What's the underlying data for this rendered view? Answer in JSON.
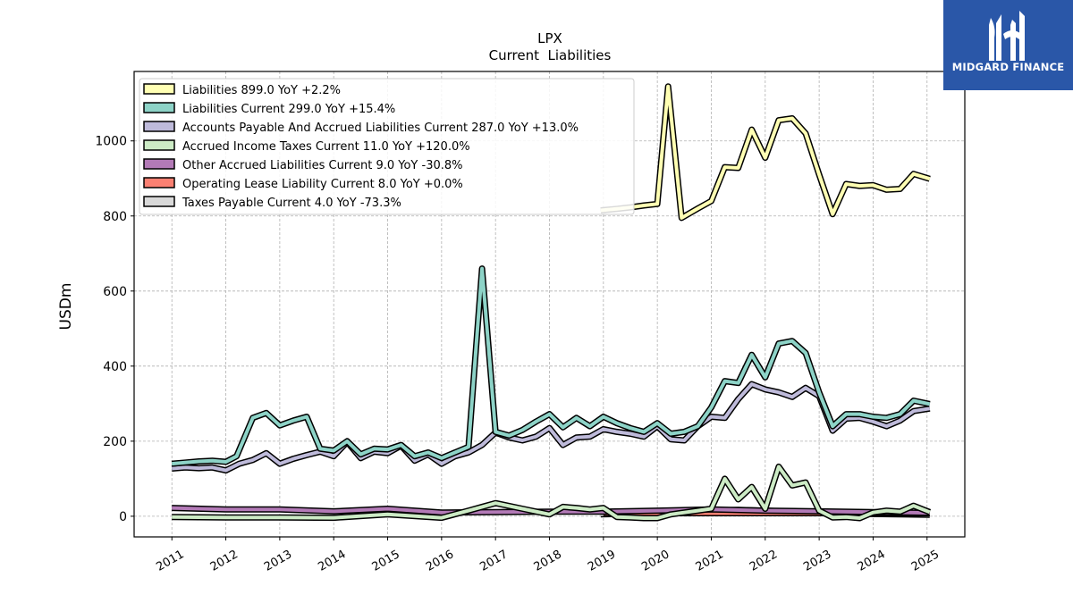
{
  "header": {
    "ticker": "LPX",
    "subtitle": "Current  Liabilities"
  },
  "brand": {
    "name": "MIDGARD FINANCE",
    "color": "#2a57a8"
  },
  "chart_data": {
    "type": "line",
    "ylabel": "USDm",
    "xlabel": "",
    "ylim": [
      -55,
      1185
    ],
    "xlim": [
      2010.3,
      2025.7
    ],
    "yticks": [
      0,
      200,
      400,
      600,
      800,
      1000
    ],
    "xticks": [
      "2011",
      "2012",
      "2013",
      "2014",
      "2015",
      "2016",
      "2017",
      "2018",
      "2019",
      "2020",
      "2021",
      "2022",
      "2023",
      "2024",
      "2025"
    ],
    "grid": true,
    "legend_position": "top-left",
    "series": [
      {
        "name": "Liabilities",
        "legend_value": "899.0",
        "legend_yoy": "YoY +2.2%",
        "color": "#ffffb3",
        "points": [
          [
            2018.95,
            815
          ],
          [
            2019.25,
            819
          ],
          [
            2019.5,
            823
          ],
          [
            2019.75,
            828
          ],
          [
            2020.0,
            832
          ],
          [
            2020.2,
            1145
          ],
          [
            2020.45,
            795
          ],
          [
            2020.75,
            820
          ],
          [
            2021.0,
            840
          ],
          [
            2021.25,
            930
          ],
          [
            2021.5,
            928
          ],
          [
            2021.75,
            1030
          ],
          [
            2022.0,
            955
          ],
          [
            2022.25,
            1055
          ],
          [
            2022.5,
            1060
          ],
          [
            2022.75,
            1020
          ],
          [
            2023.0,
            910
          ],
          [
            2023.25,
            805
          ],
          [
            2023.5,
            885
          ],
          [
            2023.75,
            880
          ],
          [
            2024.0,
            882
          ],
          [
            2024.25,
            870
          ],
          [
            2024.5,
            872
          ],
          [
            2024.75,
            912
          ],
          [
            2025.05,
            899
          ]
        ]
      },
      {
        "name": "Liabilities Current",
        "legend_value": "299.0",
        "legend_yoy": "YoY +15.4%",
        "color": "#8dd3c7",
        "points": [
          [
            2011.0,
            140
          ],
          [
            2011.25,
            143
          ],
          [
            2011.5,
            146
          ],
          [
            2011.75,
            148
          ],
          [
            2012.0,
            145
          ],
          [
            2012.2,
            160
          ],
          [
            2012.5,
            262
          ],
          [
            2012.75,
            275
          ],
          [
            2013.0,
            242
          ],
          [
            2013.25,
            255
          ],
          [
            2013.5,
            265
          ],
          [
            2013.75,
            180
          ],
          [
            2014.0,
            175
          ],
          [
            2014.25,
            200
          ],
          [
            2014.5,
            165
          ],
          [
            2014.75,
            180
          ],
          [
            2015.0,
            178
          ],
          [
            2015.25,
            190
          ],
          [
            2015.5,
            160
          ],
          [
            2015.75,
            170
          ],
          [
            2016.0,
            155
          ],
          [
            2016.25,
            170
          ],
          [
            2016.5,
            185
          ],
          [
            2016.75,
            660
          ],
          [
            2017.0,
            225
          ],
          [
            2017.25,
            215
          ],
          [
            2017.5,
            230
          ],
          [
            2017.75,
            252
          ],
          [
            2018.0,
            272
          ],
          [
            2018.25,
            237
          ],
          [
            2018.5,
            262
          ],
          [
            2018.75,
            240
          ],
          [
            2019.0,
            265
          ],
          [
            2019.25,
            248
          ],
          [
            2019.5,
            235
          ],
          [
            2019.75,
            225
          ],
          [
            2020.0,
            248
          ],
          [
            2020.25,
            220
          ],
          [
            2020.5,
            225
          ],
          [
            2020.75,
            240
          ],
          [
            2021.0,
            290
          ],
          [
            2021.25,
            360
          ],
          [
            2021.5,
            355
          ],
          [
            2021.75,
            430
          ],
          [
            2022.0,
            370
          ],
          [
            2022.25,
            460
          ],
          [
            2022.5,
            467
          ],
          [
            2022.75,
            435
          ],
          [
            2023.0,
            330
          ],
          [
            2023.25,
            240
          ],
          [
            2023.5,
            272
          ],
          [
            2023.75,
            272
          ],
          [
            2024.0,
            265
          ],
          [
            2024.25,
            262
          ],
          [
            2024.5,
            272
          ],
          [
            2024.75,
            308
          ],
          [
            2025.05,
            299
          ]
        ]
      },
      {
        "name": "Accounts Payable And Accrued Liabilities Current",
        "legend_value": "287.0",
        "legend_yoy": "YoY +13.0%",
        "color": "#bebada",
        "points": [
          [
            2011.0,
            127
          ],
          [
            2011.25,
            130
          ],
          [
            2011.5,
            128
          ],
          [
            2011.75,
            130
          ],
          [
            2012.0,
            122
          ],
          [
            2012.25,
            140
          ],
          [
            2012.5,
            150
          ],
          [
            2012.75,
            168
          ],
          [
            2013.0,
            140
          ],
          [
            2013.25,
            153
          ],
          [
            2013.5,
            163
          ],
          [
            2013.75,
            172
          ],
          [
            2014.0,
            160
          ],
          [
            2014.25,
            198
          ],
          [
            2014.5,
            155
          ],
          [
            2014.75,
            172
          ],
          [
            2015.0,
            168
          ],
          [
            2015.25,
            188
          ],
          [
            2015.5,
            148
          ],
          [
            2015.75,
            165
          ],
          [
            2016.0,
            140
          ],
          [
            2016.25,
            160
          ],
          [
            2016.5,
            170
          ],
          [
            2016.75,
            190
          ],
          [
            2017.0,
            223
          ],
          [
            2017.25,
            210
          ],
          [
            2017.5,
            202
          ],
          [
            2017.75,
            212
          ],
          [
            2018.0,
            235
          ],
          [
            2018.25,
            190
          ],
          [
            2018.5,
            210
          ],
          [
            2018.75,
            212
          ],
          [
            2019.0,
            232
          ],
          [
            2019.25,
            225
          ],
          [
            2019.5,
            220
          ],
          [
            2019.75,
            212
          ],
          [
            2020.0,
            240
          ],
          [
            2020.25,
            205
          ],
          [
            2020.5,
            202
          ],
          [
            2020.75,
            240
          ],
          [
            2021.0,
            265
          ],
          [
            2021.25,
            262
          ],
          [
            2021.5,
            312
          ],
          [
            2021.75,
            352
          ],
          [
            2022.0,
            338
          ],
          [
            2022.25,
            330
          ],
          [
            2022.5,
            318
          ],
          [
            2022.75,
            342
          ],
          [
            2023.0,
            320
          ],
          [
            2023.25,
            228
          ],
          [
            2023.5,
            260
          ],
          [
            2023.75,
            262
          ],
          [
            2024.0,
            252
          ],
          [
            2024.25,
            240
          ],
          [
            2024.5,
            255
          ],
          [
            2024.75,
            280
          ],
          [
            2025.05,
            287
          ]
        ]
      },
      {
        "name": "Accrued Income Taxes Current",
        "legend_value": "11.0",
        "legend_yoy": "YoY +120.0%",
        "color": "#ccebc5",
        "points": [
          [
            2011.0,
            -2
          ],
          [
            2012.0,
            -3
          ],
          [
            2013.0,
            -3
          ],
          [
            2014.0,
            -4
          ],
          [
            2015.0,
            5
          ],
          [
            2016.0,
            -4
          ],
          [
            2016.5,
            15
          ],
          [
            2016.75,
            25
          ],
          [
            2017.0,
            35
          ],
          [
            2017.5,
            20
          ],
          [
            2018.0,
            5
          ],
          [
            2018.25,
            25
          ],
          [
            2018.5,
            22
          ],
          [
            2018.75,
            18
          ],
          [
            2019.0,
            22
          ],
          [
            2019.25,
            -2
          ],
          [
            2019.5,
            -3
          ],
          [
            2019.75,
            -5
          ],
          [
            2020.0,
            -5
          ],
          [
            2020.25,
            5
          ],
          [
            2020.5,
            10
          ],
          [
            2020.75,
            15
          ],
          [
            2021.0,
            20
          ],
          [
            2021.25,
            100
          ],
          [
            2021.5,
            45
          ],
          [
            2021.75,
            78
          ],
          [
            2022.0,
            20
          ],
          [
            2022.25,
            132
          ],
          [
            2022.5,
            82
          ],
          [
            2022.75,
            90
          ],
          [
            2023.0,
            15
          ],
          [
            2023.25,
            -3
          ],
          [
            2023.5,
            -2
          ],
          [
            2023.75,
            -5
          ],
          [
            2024.0,
            10
          ],
          [
            2024.25,
            15
          ],
          [
            2024.5,
            12
          ],
          [
            2024.75,
            28
          ],
          [
            2025.05,
            11
          ]
        ]
      },
      {
        "name": "Other Accrued Liabilities Current",
        "legend_value": "9.0",
        "legend_yoy": "YoY -30.8%",
        "color": "#b37ab7",
        "points": [
          [
            2011.0,
            22
          ],
          [
            2012.0,
            18
          ],
          [
            2013.0,
            18
          ],
          [
            2014.0,
            13
          ],
          [
            2015.0,
            20
          ],
          [
            2016.0,
            10
          ],
          [
            2017.0,
            11
          ],
          [
            2018.0,
            12
          ],
          [
            2019.0,
            12
          ],
          [
            2020.0,
            15
          ],
          [
            2021.0,
            18
          ],
          [
            2022.0,
            15
          ],
          [
            2023.0,
            13
          ],
          [
            2024.0,
            11
          ],
          [
            2025.05,
            9
          ]
        ]
      },
      {
        "name": "Operating Lease Liability Current",
        "legend_value": "8.0",
        "legend_yoy": "YoY +0.0%",
        "color": "#fb8072",
        "points": [
          [
            2019.0,
            8
          ],
          [
            2019.5,
            8
          ],
          [
            2020.0,
            8
          ],
          [
            2020.5,
            8
          ],
          [
            2021.0,
            8
          ],
          [
            2021.5,
            8
          ],
          [
            2022.0,
            8
          ],
          [
            2022.5,
            8
          ],
          [
            2023.0,
            8
          ],
          [
            2023.5,
            8
          ],
          [
            2024.0,
            8
          ],
          [
            2024.5,
            8
          ],
          [
            2025.05,
            8
          ]
        ]
      },
      {
        "name": "Taxes Payable Current",
        "legend_value": "4.0",
        "legend_yoy": "YoY -73.3%",
        "color": "#d9d9d9",
        "points": [
          [
            2018.95,
            5
          ],
          [
            2019.5,
            7
          ],
          [
            2020.0,
            9
          ],
          [
            2020.5,
            12
          ],
          [
            2021.0,
            15
          ],
          [
            2021.5,
            17
          ],
          [
            2022.0,
            15
          ],
          [
            2022.5,
            12
          ],
          [
            2023.0,
            10
          ],
          [
            2023.5,
            8
          ],
          [
            2024.0,
            6
          ],
          [
            2024.5,
            5
          ],
          [
            2025.05,
            4
          ]
        ]
      }
    ]
  }
}
